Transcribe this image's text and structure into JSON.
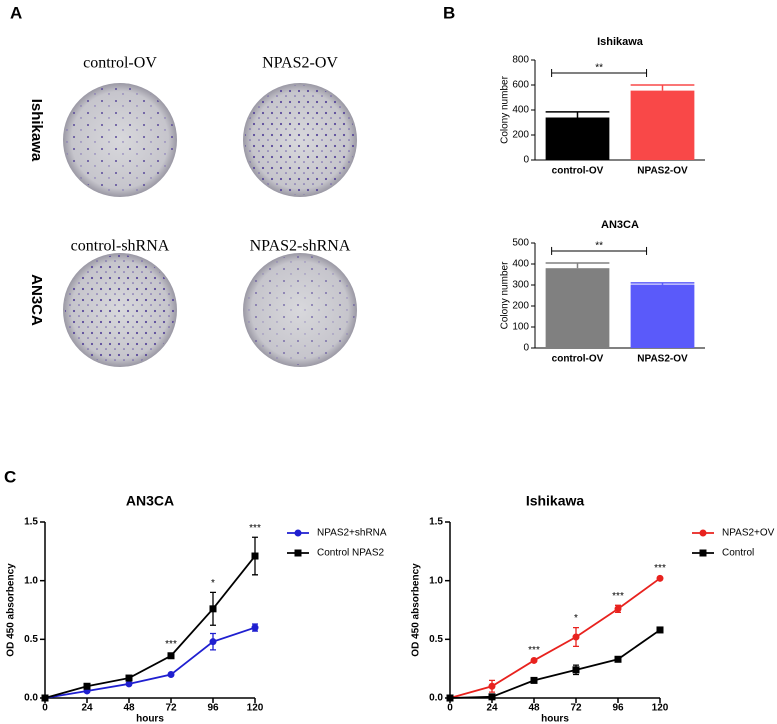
{
  "panel_labels": [
    "A",
    "B",
    "C"
  ],
  "panel_a": {
    "columns_top": [
      "control-OV",
      "NPAS2-OV"
    ],
    "columns_bottom": [
      "control-shRNA",
      "NPAS2-shRNA"
    ],
    "rows": [
      "Ishikawa",
      "AN3CA"
    ]
  },
  "chart_data": [
    {
      "type": "bar",
      "title": "Ishikawa",
      "y_label": "Colony number",
      "categories": [
        "control-OV",
        "NPAS2-OV"
      ],
      "series": [
        {
          "values": [
            340,
            555
          ],
          "errors": [
            45,
            45
          ],
          "colors": [
            "#000000",
            "#f94848"
          ]
        }
      ],
      "ylim": [
        0,
        800
      ],
      "yticks": [
        0,
        200,
        400,
        600,
        800
      ],
      "annotations": [
        {
          "text": "**"
        }
      ]
    },
    {
      "type": "bar",
      "title": "AN3CA",
      "y_label": "Colony number",
      "categories": [
        "control-OV",
        "NPAS2-OV"
      ],
      "series": [
        {
          "values": [
            380,
            302
          ],
          "errors": [
            25,
            8
          ],
          "colors": [
            "#808080",
            "#5a5afa"
          ]
        }
      ],
      "ylim": [
        0,
        500
      ],
      "yticks": [
        0,
        100,
        200,
        300,
        400,
        500
      ],
      "annotations": [
        {
          "text": "**"
        }
      ]
    },
    {
      "type": "line",
      "title": "AN3CA",
      "x_label": "hours",
      "y_label": "OD 450 absorbency",
      "x": [
        0,
        24,
        48,
        72,
        96,
        120
      ],
      "series": [
        {
          "name": "NPAS2+shRNA",
          "color": "#1f1fd0",
          "marker": "circle",
          "values": [
            0,
            0.06,
            0.12,
            0.2,
            0.48,
            0.6
          ],
          "errors": [
            0,
            0.01,
            0.01,
            0.01,
            0.07,
            0.03
          ]
        },
        {
          "name": "Control NPAS2",
          "color": "#000000",
          "marker": "square",
          "values": [
            0,
            0.1,
            0.17,
            0.36,
            0.76,
            1.21
          ],
          "errors": [
            0,
            0.01,
            0.01,
            0.02,
            0.14,
            0.16
          ]
        }
      ],
      "xlim": [
        0,
        120
      ],
      "xticks": [
        0,
        24,
        48,
        72,
        96,
        120
      ],
      "ylim": [
        0,
        1.5
      ],
      "yticks": [
        {
          "value": 0,
          "label": "0.0"
        },
        0.5,
        {
          "value": 1,
          "label": "1.0"
        },
        1.5
      ],
      "annotations": [
        {
          "x": 72,
          "text": "***"
        },
        {
          "x": 96,
          "text": "*"
        },
        {
          "x": 120,
          "text": "***"
        }
      ]
    },
    {
      "type": "line",
      "title": "Ishikawa",
      "x_label": "hours",
      "y_label": "OD 450 absorbency",
      "x": [
        0,
        24,
        48,
        72,
        96,
        120
      ],
      "series": [
        {
          "name": "NPAS2+OV",
          "color": "#e8221e",
          "marker": "circle",
          "values": [
            0,
            0.1,
            0.32,
            0.52,
            0.76,
            1.02
          ],
          "errors": [
            0,
            0.05,
            0.01,
            0.08,
            0.03,
            0.01
          ]
        },
        {
          "name": "Control",
          "color": "#000000",
          "marker": "square",
          "values": [
            0,
            0.01,
            0.15,
            0.24,
            0.33,
            0.58
          ],
          "errors": [
            0,
            0.01,
            0.01,
            0.04,
            0.01,
            0.01
          ]
        }
      ],
      "xlim": [
        0,
        120
      ],
      "xticks": [
        0,
        24,
        48,
        72,
        96,
        120
      ],
      "ylim": [
        0,
        1.5
      ],
      "yticks": [
        {
          "value": 0,
          "label": "0.0"
        },
        0.5,
        {
          "value": 1,
          "label": "1.0"
        },
        1.5
      ],
      "annotations": [
        {
          "x": 48,
          "text": "***"
        },
        {
          "x": 72,
          "text": "*"
        },
        {
          "x": 96,
          "text": "***"
        },
        {
          "x": 120,
          "text": "***"
        }
      ]
    }
  ]
}
